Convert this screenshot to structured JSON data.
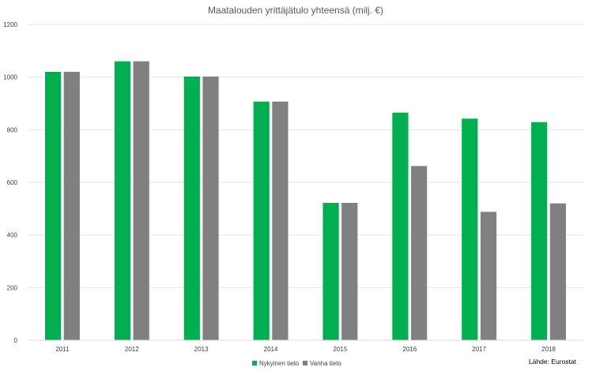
{
  "chart_data": {
    "type": "bar",
    "title": "Maatalouden yrittäjätulo yhteensä (milj. €)",
    "categories": [
      "2011",
      "2012",
      "2013",
      "2014",
      "2015",
      "2016",
      "2017",
      "2018"
    ],
    "series": [
      {
        "name": "Nykyinen tieto",
        "color": "#00b050",
        "values": [
          1020,
          1060,
          1002,
          907,
          522,
          865,
          842,
          829
        ]
      },
      {
        "name": "Vanha tieto",
        "color": "#808080",
        "values": [
          1020,
          1060,
          1002,
          907,
          522,
          662,
          488,
          520
        ]
      }
    ],
    "ylim": [
      0,
      1200
    ],
    "yticks": [
      "0",
      "200",
      "400",
      "600",
      "800",
      "1000",
      "1200"
    ],
    "grid": true,
    "legend": "bottom"
  },
  "source": "Lähde: Eurostat"
}
